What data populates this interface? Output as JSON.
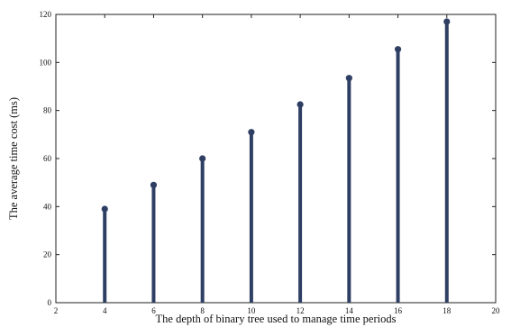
{
  "chart_data": {
    "type": "stem",
    "title": "",
    "xlabel": "The depth of binary tree used to manage time periods",
    "ylabel": "The average time cost (ms)",
    "xlim": [
      2,
      20
    ],
    "ylim": [
      0,
      120
    ],
    "xticks": [
      "2",
      "4",
      "6",
      "8",
      "10",
      "12",
      "14",
      "16",
      "18",
      "20"
    ],
    "yticks": [
      "0",
      "20",
      "40",
      "60",
      "80",
      "100",
      "120"
    ],
    "x": [
      4,
      6,
      8,
      10,
      12,
      14,
      16,
      18
    ],
    "y": [
      39,
      49,
      60,
      71,
      82.5,
      93.5,
      105.5,
      117
    ],
    "grid": false,
    "colors": {
      "stem": "#2e3f63",
      "axes": "#222222"
    }
  }
}
